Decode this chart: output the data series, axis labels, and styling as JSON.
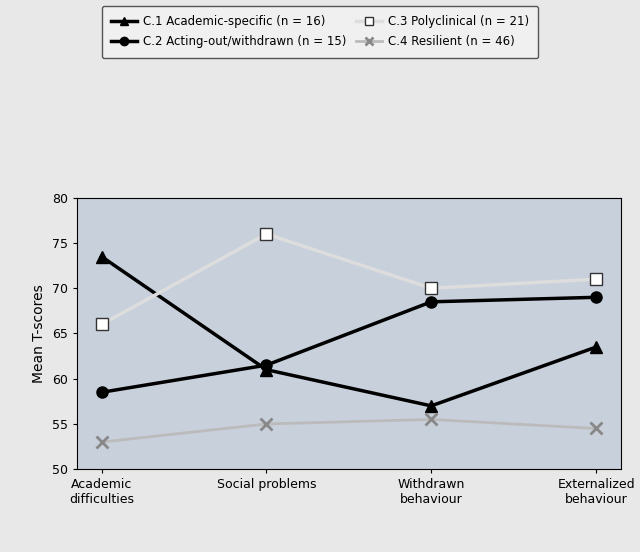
{
  "categories": [
    "Academic\ndifficulties",
    "Social problems",
    "Withdrawn\nbehaviour",
    "Externalized\nbehaviour"
  ],
  "series": [
    {
      "label": "C.1 Academic-specific (n = 16)",
      "values": [
        73.5,
        61.0,
        57.0,
        63.5
      ],
      "color": "#000000",
      "linewidth": 2.5,
      "marker": "^",
      "markersize": 8,
      "linestyle": "-",
      "markerfacecolor": "#000000",
      "markeredgecolor": "#000000"
    },
    {
      "label": "C.2 Acting-out/withdrawn (n = 15)",
      "values": [
        58.5,
        61.5,
        68.5,
        69.0
      ],
      "color": "#000000",
      "linewidth": 2.5,
      "marker": "o",
      "markersize": 8,
      "linestyle": "-",
      "markerfacecolor": "#000000",
      "markeredgecolor": "#000000"
    },
    {
      "label": "C.3 Polyclinical (n = 21)",
      "values": [
        66.0,
        76.0,
        70.0,
        71.0
      ],
      "color": "#dddddd",
      "linewidth": 2.5,
      "marker": "s",
      "markersize": 8,
      "linestyle": "-",
      "markerfacecolor": "#ffffff",
      "markeredgecolor": "#333333"
    },
    {
      "label": "C.4 Resilient (n = 46)",
      "values": [
        53.0,
        55.0,
        55.5,
        54.5
      ],
      "color": "#bbbbbb",
      "linewidth": 2.0,
      "marker": "x",
      "markersize": 9,
      "linestyle": "-",
      "markerfacecolor": "#bbbbbb",
      "markeredgecolor": "#888888",
      "markeredgewidth": 2.0
    }
  ],
  "ylabel": "Mean T-scores",
  "ylim": [
    50,
    80
  ],
  "yticks": [
    50,
    55,
    60,
    65,
    70,
    75,
    80
  ],
  "plot_bg": "#c8d0dc",
  "fig_bg": "#e8e8e8",
  "legend_bg": "#f0f0f0",
  "legend_fontsize": 8.5,
  "tick_fontsize": 9,
  "ylabel_fontsize": 10
}
